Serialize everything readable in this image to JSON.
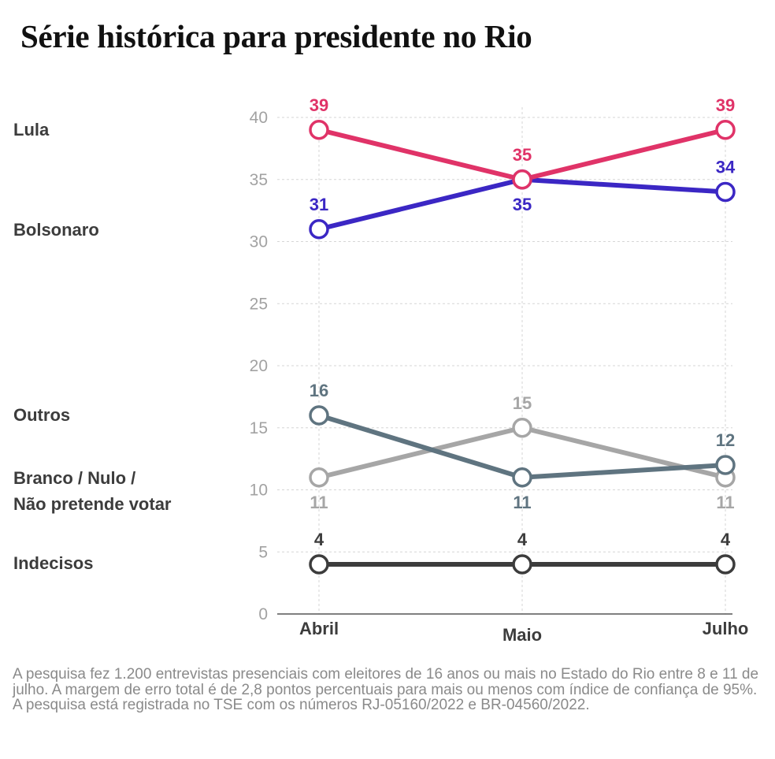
{
  "title": "Série histórica para presidente no Rio",
  "footnote": "A pesquisa fez 1.200 entrevistas presenciais com eleitores de 16 anos ou mais no Estado do Rio entre 8 e 11 de julho. A margem de erro total é de 2,8 pontos percentuais para mais ou menos com índice de confiança de 95%. A pesquisa está registrada no TSE com os números RJ-05160/2022 e BR-04560/2022.",
  "chart_data": {
    "type": "line",
    "title": "Série histórica para presidente no Rio",
    "xlabel": "",
    "ylabel": "",
    "categories": [
      "Abril",
      "Maio",
      "Julho"
    ],
    "ylim": [
      0,
      40
    ],
    "yticks": [
      0,
      5,
      10,
      15,
      20,
      25,
      30,
      35,
      40
    ],
    "grid": true,
    "series": [
      {
        "name": "Lula",
        "values": [
          39,
          35,
          39
        ],
        "color": "#e03368"
      },
      {
        "name": "Bolsonaro",
        "values": [
          31,
          35,
          34
        ],
        "color": "#3b27c4"
      },
      {
        "name": "Outros",
        "values": [
          16,
          11,
          12
        ],
        "color": "#5f7480"
      },
      {
        "name": "Branco / Nulo / Não pretende votar",
        "values": [
          11,
          15,
          11
        ],
        "color": "#a6a6a6"
      },
      {
        "name": "Indecisos",
        "values": [
          4,
          4,
          4
        ],
        "color": "#3c3c3c"
      }
    ]
  }
}
